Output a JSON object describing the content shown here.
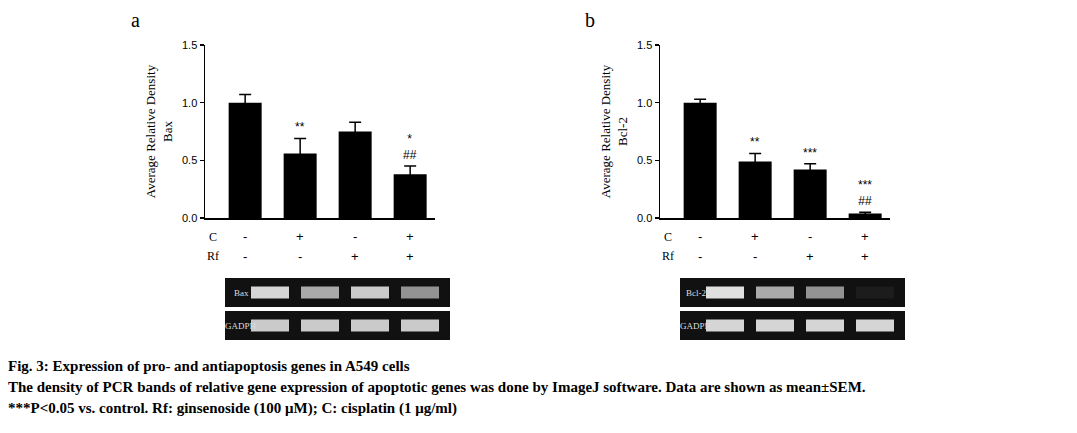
{
  "chart_data": [
    {
      "type": "bar",
      "title": "a",
      "ylabel": [
        "Average Relative Density",
        "Bax"
      ],
      "categories": [
        null,
        null,
        null,
        null
      ],
      "values": [
        1.0,
        0.56,
        0.75,
        0.38
      ],
      "errors": [
        0.07,
        0.13,
        0.08,
        0.07
      ],
      "color": "#000000",
      "ylim": [
        0,
        1.5
      ],
      "yticks": [
        {
          "value": 0,
          "label": "0.0"
        },
        {
          "value": 0.5,
          "label": "0.5"
        },
        {
          "value": 1,
          "label": "1.0"
        },
        {
          "value": 1.5,
          "label": "1.5"
        }
      ],
      "grid": false,
      "annotations": [
        null,
        [
          "**"
        ],
        null,
        [
          "*",
          "##"
        ]
      ],
      "treatments": [
        {
          "name": "C",
          "signs": [
            "-",
            "+",
            "-",
            "+"
          ]
        },
        {
          "name": "Rf",
          "signs": [
            "-",
            "-",
            "+",
            "+"
          ]
        }
      ],
      "gel": [
        {
          "label": "Bax",
          "bands": [
            0.9,
            0.7,
            0.85,
            0.6
          ]
        },
        {
          "label": "GADPH",
          "bands": [
            0.85,
            0.85,
            0.85,
            0.85
          ]
        }
      ]
    },
    {
      "type": "bar",
      "title": "b",
      "ylabel": [
        "Average Relative Density",
        "Bcl-2"
      ],
      "categories": [
        null,
        null,
        null,
        null
      ],
      "values": [
        1.0,
        0.49,
        0.42,
        0.04
      ],
      "errors": [
        0.03,
        0.07,
        0.05,
        0.01
      ],
      "color": "#000000",
      "ylim": [
        0,
        1.5
      ],
      "yticks": [
        {
          "value": 0,
          "label": "0.0"
        },
        {
          "value": 0.5,
          "label": "0.5"
        },
        {
          "value": 1,
          "label": "1.0"
        },
        {
          "value": 1.5,
          "label": "1.5"
        }
      ],
      "grid": false,
      "annotations": [
        null,
        [
          "**"
        ],
        [
          "***"
        ],
        [
          "***",
          "##"
        ]
      ],
      "treatments": [
        {
          "name": "C",
          "signs": [
            "-",
            "+",
            "-",
            "+"
          ]
        },
        {
          "name": "Rf",
          "signs": [
            "-",
            "-",
            "+",
            "+"
          ]
        }
      ],
      "gel": [
        {
          "label": "Bcl-2",
          "bands": [
            0.95,
            0.7,
            0.6,
            0.05
          ]
        },
        {
          "label": "GADPH",
          "bands": [
            0.9,
            0.9,
            0.9,
            0.9
          ]
        }
      ]
    }
  ],
  "caption": {
    "title": "Fig. 3: Expression of pro- and antiapoptosis genes in A549 cells",
    "lines": [
      "The density of PCR bands of relative gene expression of apoptotic genes was done by ImageJ software. Data are shown as mean±SEM.",
      "***P<0.05 vs. control. Rf: ginsenoside (100 μM); C: cisplatin (1 μg/ml)"
    ]
  }
}
